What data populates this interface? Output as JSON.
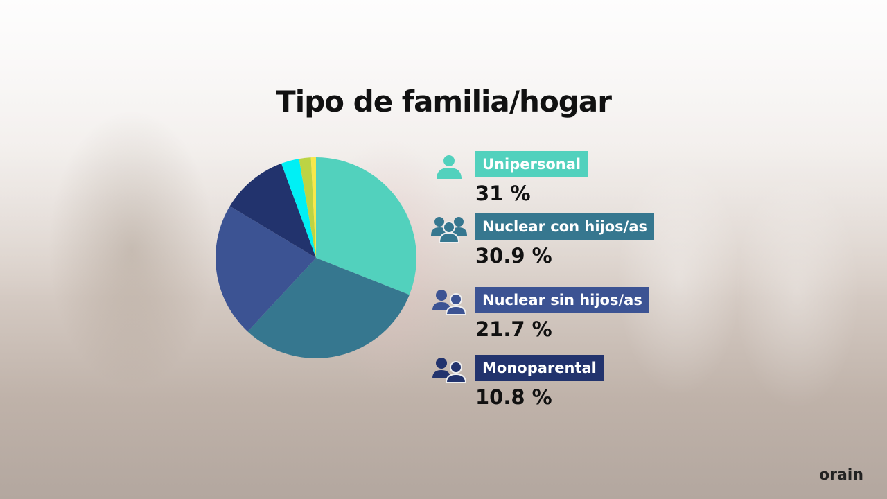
{
  "chart_data": {
    "type": "pie",
    "title": "Tipo de familia/hogar",
    "start": "top",
    "direction": "clockwise",
    "slices": [
      {
        "name": "Unipersonal",
        "value": 31,
        "label": "31 %",
        "color": "#52d1bd",
        "icon": "single-person-icon"
      },
      {
        "name": "Nuclear con hijos/as",
        "value": 30.9,
        "label": "30.9 %",
        "color": "#36778f",
        "icon": "group-of-three-icon"
      },
      {
        "name": "Nuclear sin hijos/as",
        "value": 21.7,
        "label": "21.7 %",
        "color": "#3c5393",
        "icon": "two-people-icon"
      },
      {
        "name": "Monoparental",
        "value": 10.8,
        "label": "10.8 %",
        "color": "#22336d",
        "icon": "two-people-icon"
      },
      {
        "value": 2.9,
        "color": "#00f0f5"
      },
      {
        "value": 1.9,
        "color": "#bcd444"
      },
      {
        "value": 0.8,
        "color": "#f7e84a"
      }
    ]
  },
  "logo": "orain"
}
